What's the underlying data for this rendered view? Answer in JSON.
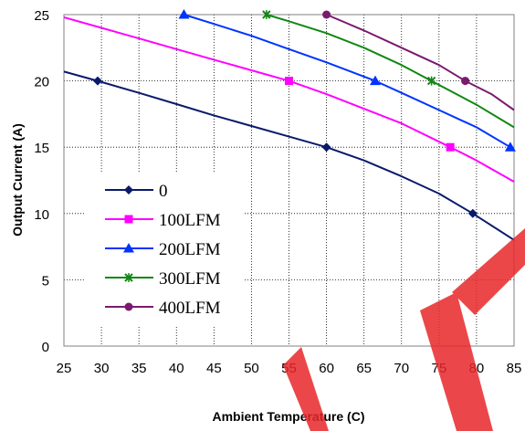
{
  "chart_data": {
    "type": "line",
    "xlabel": "Ambient Temperature (C)",
    "ylabel": "Output Current (A)",
    "xlim": [
      25,
      85
    ],
    "ylim": [
      0,
      25
    ],
    "xticks": [
      25,
      30,
      35,
      40,
      45,
      50,
      55,
      60,
      65,
      70,
      75,
      80,
      85
    ],
    "yticks": [
      0,
      5,
      10,
      15,
      20,
      25
    ],
    "grid": true,
    "legend_position": "left-middle",
    "series": [
      {
        "name": "0",
        "color": "#0a1a6b",
        "marker": "diamond",
        "curve": [
          [
            25,
            20.7
          ],
          [
            29.5,
            20.0
          ],
          [
            35,
            19.1
          ],
          [
            40,
            18.25
          ],
          [
            45,
            17.4
          ],
          [
            50,
            16.6
          ],
          [
            55,
            15.8
          ],
          [
            60,
            15.0
          ],
          [
            65,
            14.0
          ],
          [
            70,
            12.8
          ],
          [
            75,
            11.5
          ],
          [
            79.5,
            10.0
          ],
          [
            85,
            8.0
          ]
        ],
        "markers": [
          [
            29.5,
            20.0
          ],
          [
            60,
            15.0
          ],
          [
            79.5,
            10.0
          ]
        ]
      },
      {
        "name": "100LFM",
        "color": "#ff00ff",
        "marker": "square",
        "curve": [
          [
            25,
            24.8
          ],
          [
            30,
            24.0
          ],
          [
            35,
            23.2
          ],
          [
            40,
            22.4
          ],
          [
            45,
            21.6
          ],
          [
            50,
            20.8
          ],
          [
            55,
            20.0
          ],
          [
            60,
            19.0
          ],
          [
            65,
            17.9
          ],
          [
            70,
            16.8
          ],
          [
            76.5,
            15.0
          ],
          [
            80,
            14.0
          ],
          [
            85,
            12.4
          ]
        ],
        "markers": [
          [
            55,
            20.0
          ],
          [
            76.5,
            15.0
          ]
        ]
      },
      {
        "name": "200LFM",
        "color": "#0033ff",
        "marker": "triangle",
        "curve": [
          [
            41,
            25.0
          ],
          [
            45,
            24.3
          ],
          [
            50,
            23.4
          ],
          [
            55,
            22.4
          ],
          [
            60,
            21.4
          ],
          [
            66.5,
            20.0
          ],
          [
            70,
            19.1
          ],
          [
            75,
            17.8
          ],
          [
            80,
            16.5
          ],
          [
            84.5,
            15.0
          ],
          [
            85,
            14.8
          ]
        ],
        "markers": [
          [
            41,
            25.0
          ],
          [
            66.5,
            20.0
          ],
          [
            84.5,
            15.0
          ]
        ]
      },
      {
        "name": "300LFM",
        "color": "#118811",
        "marker": "x",
        "curve": [
          [
            52,
            25.0
          ],
          [
            55,
            24.5
          ],
          [
            60,
            23.6
          ],
          [
            65,
            22.5
          ],
          [
            70,
            21.2
          ],
          [
            74,
            20.0
          ],
          [
            80,
            18.2
          ],
          [
            85,
            16.5
          ]
        ],
        "markers": [
          [
            52,
            25.0
          ],
          [
            74,
            20.0
          ]
        ]
      },
      {
        "name": "400LFM",
        "color": "#7a1a6e",
        "marker": "circle",
        "curve": [
          [
            60,
            25.0
          ],
          [
            65,
            23.8
          ],
          [
            70,
            22.5
          ],
          [
            75,
            21.2
          ],
          [
            78.5,
            20.0
          ],
          [
            82,
            19.0
          ],
          [
            85,
            17.8
          ]
        ],
        "markers": [
          [
            60,
            25.0
          ],
          [
            78.5,
            20.0
          ]
        ]
      }
    ]
  }
}
